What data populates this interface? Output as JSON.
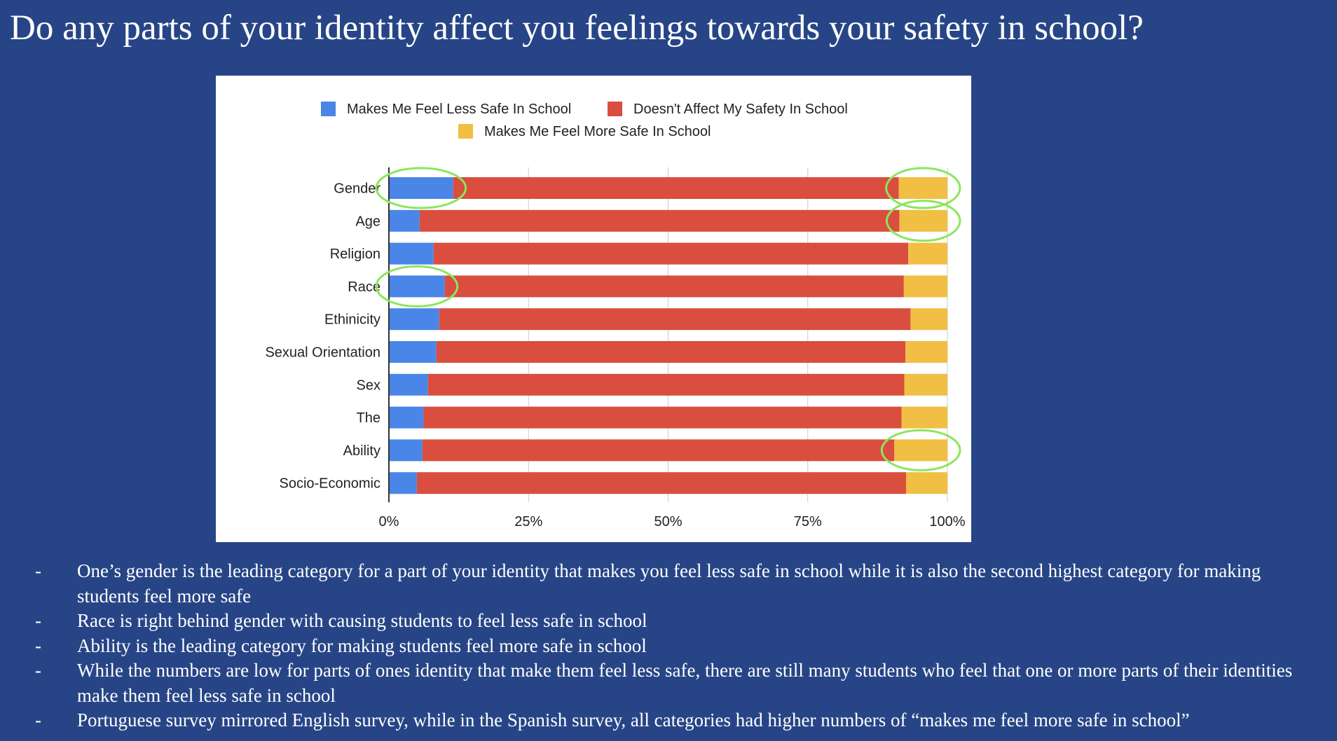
{
  "slide": {
    "title": "Do any parts of your identity affect you feelings towards your safety in school?"
  },
  "chart_data": {
    "type": "bar",
    "orientation": "horizontal",
    "stacked": "percent",
    "categories": [
      "Gender",
      "Age",
      "Religion",
      "Race",
      "Ethinicity",
      "Sexual Orientation",
      "Sex",
      "The",
      "Ability",
      "Socio-Economic"
    ],
    "series": [
      {
        "name": "Makes Me Feel Less Safe In School",
        "color": "#4a86e8",
        "values": [
          11.5,
          5.5,
          8.0,
          10.0,
          9.0,
          8.5,
          7.0,
          6.2,
          6.0,
          5.0
        ]
      },
      {
        "name": "Doesn't Affect My Safety In School",
        "color": "#d94e3e",
        "values": [
          79.8,
          85.9,
          85.0,
          82.2,
          84.4,
          84.0,
          85.3,
          85.6,
          84.5,
          87.6
        ]
      },
      {
        "name": "Makes Me Feel More Safe In School",
        "color": "#f0bf43",
        "values": [
          8.7,
          8.6,
          7.0,
          7.8,
          6.6,
          7.5,
          7.7,
          8.2,
          9.5,
          7.4
        ]
      }
    ],
    "xticks": [
      "0%",
      "25%",
      "50%",
      "75%",
      "100%"
    ],
    "xlim": [
      0,
      100
    ],
    "grid": true,
    "legend": "top",
    "highlight_color": "#8ce65c",
    "highlights": [
      {
        "category": "Gender",
        "series": "Makes Me Feel Less Safe In School"
      },
      {
        "category": "Gender",
        "series": "Makes Me Feel More Safe In School"
      },
      {
        "category": "Age",
        "series": "Makes Me Feel More Safe In School"
      },
      {
        "category": "Race",
        "series": "Makes Me Feel Less Safe In School"
      },
      {
        "category": "Ability",
        "series": "Makes Me Feel More Safe In School"
      }
    ]
  },
  "bullets": [
    {
      "dash": "-",
      "text": "One’s gender is the leading category for a part of your identity that makes you feel less safe in school while it is also the second highest category for making students feel more safe"
    },
    {
      "dash": "-",
      "text": "Race is right behind gender with causing students to feel less safe in school"
    },
    {
      "dash": "-",
      "text": "Ability is the leading category for making students feel more safe in school"
    },
    {
      "dash": "-",
      "text": "While the numbers are low for parts of ones identity that make them feel less safe, there are still many students who feel that one or more parts of their identities make them feel less safe in school"
    },
    {
      "dash": "-",
      "text": "Portuguese survey mirrored English survey, while in the Spanish survey, all categories had higher numbers of “makes me feel more safe in school”"
    }
  ]
}
